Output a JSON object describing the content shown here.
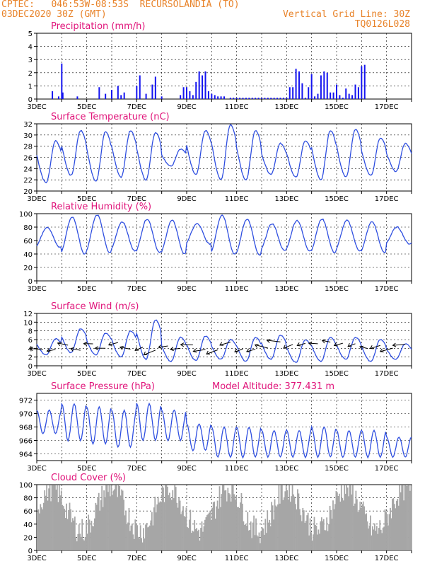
{
  "header": {
    "line1_left": "CPTEC:   046:53W-08:53S  RECURSOLANDIA (TO)",
    "line2_left": "03DEC2020 30Z (GMT)",
    "line1_right": "Vertical Grid Line: 30Z",
    "line2_right": "TQ0126L028"
  },
  "chart_data": [
    {
      "type": "bar",
      "title": "Precipitation (mm/h)",
      "ylim": [
        0,
        5
      ],
      "yticks": [
        0,
        1,
        2,
        3,
        4,
        5
      ],
      "xtick_labels": [
        "3DEC",
        "5DEC",
        "7DEC",
        "9DEC",
        "11DEC",
        "13DEC",
        "15DEC",
        "17DEC"
      ],
      "bar_color": "#1414f0",
      "x_hours": [
        15,
        21,
        24,
        25,
        39,
        60,
        66,
        72,
        78,
        81,
        84,
        96,
        99,
        105,
        111,
        114,
        120,
        138,
        141,
        144,
        147,
        150,
        153,
        156,
        159,
        162,
        165,
        168,
        171,
        174,
        177,
        180,
        186,
        189,
        192,
        195,
        198,
        201,
        204,
        207,
        210,
        213,
        216,
        219,
        222,
        225,
        228,
        231,
        234,
        237,
        240,
        243,
        246,
        249,
        252,
        255,
        258,
        261,
        264,
        267,
        270,
        273,
        276,
        279,
        282,
        285,
        288,
        291,
        294,
        297,
        300,
        303,
        306,
        309,
        312,
        315
      ],
      "values": [
        0.6,
        0.2,
        2.7,
        0.5,
        0.2,
        0.9,
        0.4,
        0.7,
        1.0,
        0.3,
        0.5,
        1.0,
        1.8,
        0.4,
        1.1,
        1.7,
        0.2,
        0.3,
        0.9,
        0.9,
        0.6,
        0.3,
        1.3,
        2.1,
        1.8,
        2.1,
        0.6,
        0.4,
        0.3,
        0.2,
        0.2,
        0.2,
        0.1,
        0.1,
        0.1,
        0.1,
        0.1,
        0.1,
        0.1,
        0.1,
        0.1,
        0.1,
        0.1,
        0.1,
        0.1,
        0.1,
        0.1,
        0.1,
        0.1,
        0.1,
        0.1,
        0.9,
        0.9,
        2.3,
        2.1,
        1.2,
        0.1,
        0.9,
        1.9,
        0.2,
        0.4,
        1.8,
        2.1,
        2.0,
        0.5,
        0.5,
        1.1,
        0.3,
        0.1,
        0.8,
        0.4,
        0.3,
        1.1,
        0.9,
        2.5,
        2.6
      ]
    },
    {
      "type": "line",
      "title": "Surface Temperature (nC)",
      "ylim": [
        20,
        32
      ],
      "yticks": [
        20,
        22,
        24,
        26,
        28,
        30,
        32
      ],
      "xtick_labels": [
        "3DEC",
        "5DEC",
        "7DEC",
        "9DEC",
        "11DEC",
        "13DEC",
        "15DEC",
        "17DEC"
      ],
      "line_color": "#2f4fe0",
      "daily_max": [
        29.0,
        30.8,
        30.6,
        30.8,
        30.5,
        27.5,
        30.8,
        31.8,
        30.8,
        28.5,
        29.0,
        30.8,
        31.0,
        29.5,
        28.5
      ],
      "daily_min": [
        21.5,
        22.8,
        21.8,
        22.5,
        22.0,
        24.5,
        23.0,
        22.0,
        22.0,
        23.0,
        22.5,
        22.0,
        22.5,
        22.8,
        23.5
      ]
    },
    {
      "type": "line",
      "title": "Relative Humidity (%)",
      "ylim": [
        0,
        100
      ],
      "yticks": [
        0,
        20,
        40,
        60,
        80,
        100
      ],
      "xtick_labels": [
        "3DEC",
        "5DEC",
        "7DEC",
        "9DEC",
        "11DEC",
        "13DEC",
        "15DEC",
        "17DEC"
      ],
      "line_color": "#2f4fe0",
      "daily_max": [
        80,
        95,
        98,
        88,
        92,
        90,
        85,
        98,
        92,
        85,
        90,
        92,
        90,
        88,
        80
      ],
      "daily_min": [
        50,
        40,
        42,
        45,
        42,
        40,
        55,
        40,
        38,
        45,
        45,
        42,
        45,
        42,
        55
      ]
    },
    {
      "type": "line",
      "title": "Surface Wind (m/s)",
      "ylim": [
        0,
        12
      ],
      "yticks": [
        0,
        2,
        4,
        6,
        8,
        10,
        12
      ],
      "xtick_labels": [
        "3DEC",
        "5DEC",
        "7DEC",
        "9DEC",
        "11DEC",
        "13DEC",
        "15DEC",
        "17DEC"
      ],
      "line_color": "#2f4fe0",
      "daily_max": [
        6.2,
        8.5,
        7.5,
        8.0,
        10.5,
        6.5,
        6.8,
        6.0,
        6.5,
        7.0,
        6.0,
        6.5,
        6.5,
        6.0,
        5.0
      ],
      "daily_min": [
        2.5,
        3.0,
        2.5,
        2.0,
        1.5,
        1.0,
        1.2,
        1.5,
        1.0,
        1.5,
        0.8,
        1.0,
        1.5,
        1.0,
        1.5
      ],
      "arrow_note": "wind direction arrows"
    },
    {
      "type": "line",
      "title": "Surface Pressure (hPa)",
      "annotation": "Model Altitude: 377.431 m",
      "ylim": [
        963,
        973
      ],
      "yticks": [
        964,
        966,
        968,
        970,
        972
      ],
      "xtick_labels": [
        "3DEC",
        "5DEC",
        "7DEC",
        "9DEC",
        "11DEC",
        "13DEC",
        "15DEC",
        "17DEC"
      ],
      "line_color": "#2f4fe0",
      "daily_max": [
        970.5,
        971.5,
        971.0,
        970.5,
        971.5,
        970.5,
        968.5,
        968.0,
        968.0,
        967.5,
        967.5,
        968.0,
        967.5,
        967.5,
        966.5
      ],
      "daily_min": [
        967.0,
        966.0,
        965.5,
        965.0,
        966.0,
        966.0,
        964.5,
        963.5,
        963.5,
        963.5,
        963.5,
        963.5,
        963.5,
        963.5,
        963.5
      ]
    },
    {
      "type": "bar",
      "title": "Cloud Cover (%)",
      "ylim": [
        0,
        100
      ],
      "yticks": [
        0,
        20,
        40,
        60,
        80,
        100
      ],
      "xtick_labels": [
        "3DEC",
        "5DEC",
        "7DEC",
        "9DEC",
        "11DEC",
        "13DEC",
        "15DEC",
        "17DEC"
      ],
      "bar_color": "#a6a6a6",
      "typical_range": [
        30,
        95
      ]
    }
  ]
}
